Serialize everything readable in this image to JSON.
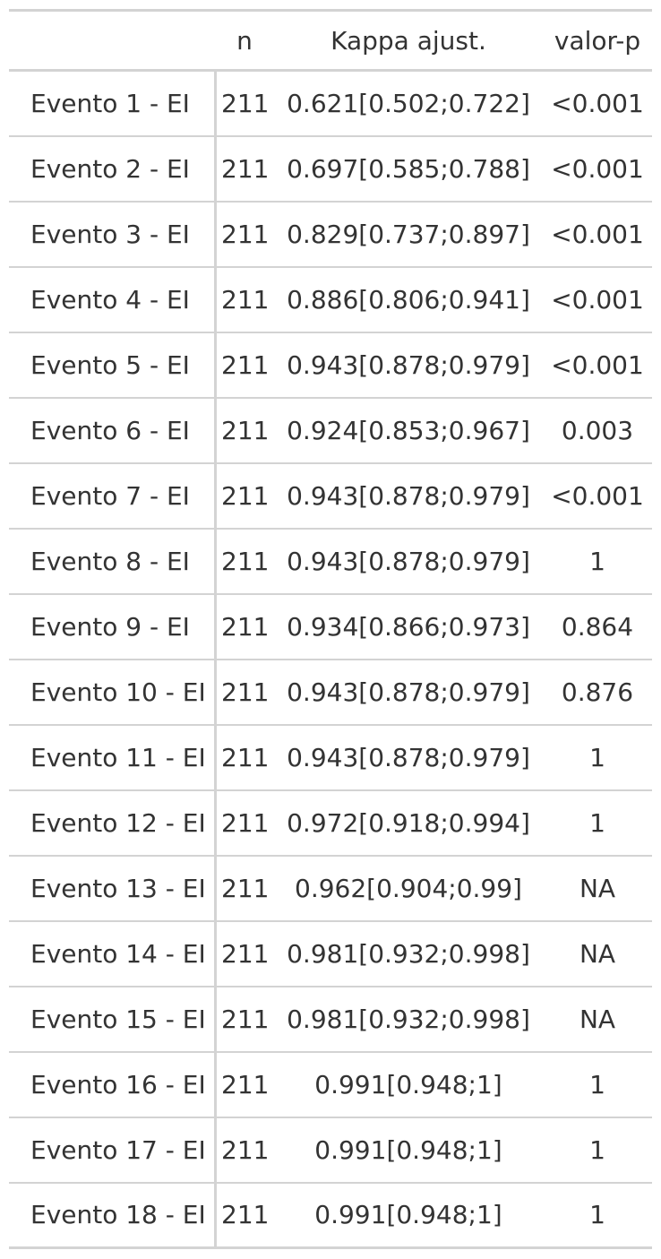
{
  "table": {
    "headers": {
      "stub": "",
      "n": "n",
      "kappa": "Kappa ajust.",
      "p": "valor-p"
    },
    "rows": [
      {
        "label": "Evento 1 - EI",
        "n": "211",
        "kappa": "0.621[0.502;0.722]",
        "p": "<0.001"
      },
      {
        "label": "Evento 2 - EI",
        "n": "211",
        "kappa": "0.697[0.585;0.788]",
        "p": "<0.001"
      },
      {
        "label": "Evento 3 - EI",
        "n": "211",
        "kappa": "0.829[0.737;0.897]",
        "p": "<0.001"
      },
      {
        "label": "Evento 4 - EI",
        "n": "211",
        "kappa": "0.886[0.806;0.941]",
        "p": "<0.001"
      },
      {
        "label": "Evento 5 - EI",
        "n": "211",
        "kappa": "0.943[0.878;0.979]",
        "p": "<0.001"
      },
      {
        "label": "Evento 6 - EI",
        "n": "211",
        "kappa": "0.924[0.853;0.967]",
        "p": "0.003"
      },
      {
        "label": "Evento 7 - EI",
        "n": "211",
        "kappa": "0.943[0.878;0.979]",
        "p": "<0.001"
      },
      {
        "label": "Evento 8 - EI",
        "n": "211",
        "kappa": "0.943[0.878;0.979]",
        "p": "1"
      },
      {
        "label": "Evento 9 - EI",
        "n": "211",
        "kappa": "0.934[0.866;0.973]",
        "p": "0.864"
      },
      {
        "label": "Evento 10 - EI",
        "n": "211",
        "kappa": "0.943[0.878;0.979]",
        "p": "0.876"
      },
      {
        "label": "Evento 11 - EI",
        "n": "211",
        "kappa": "0.943[0.878;0.979]",
        "p": "1"
      },
      {
        "label": "Evento 12 - EI",
        "n": "211",
        "kappa": "0.972[0.918;0.994]",
        "p": "1"
      },
      {
        "label": "Evento 13 - EI",
        "n": "211",
        "kappa": "0.962[0.904;0.99]",
        "p": "NA"
      },
      {
        "label": "Evento 14 - EI",
        "n": "211",
        "kappa": "0.981[0.932;0.998]",
        "p": "NA"
      },
      {
        "label": "Evento 15 - EI",
        "n": "211",
        "kappa": "0.981[0.932;0.998]",
        "p": "NA"
      },
      {
        "label": "Evento 16 - EI",
        "n": "211",
        "kappa": "0.991[0.948;1]",
        "p": "1"
      },
      {
        "label": "Evento 17 - EI",
        "n": "211",
        "kappa": "0.991[0.948;1]",
        "p": "1"
      },
      {
        "label": "Evento 18 - EI",
        "n": "211",
        "kappa": "0.991[0.948;1]",
        "p": "1"
      }
    ]
  }
}
